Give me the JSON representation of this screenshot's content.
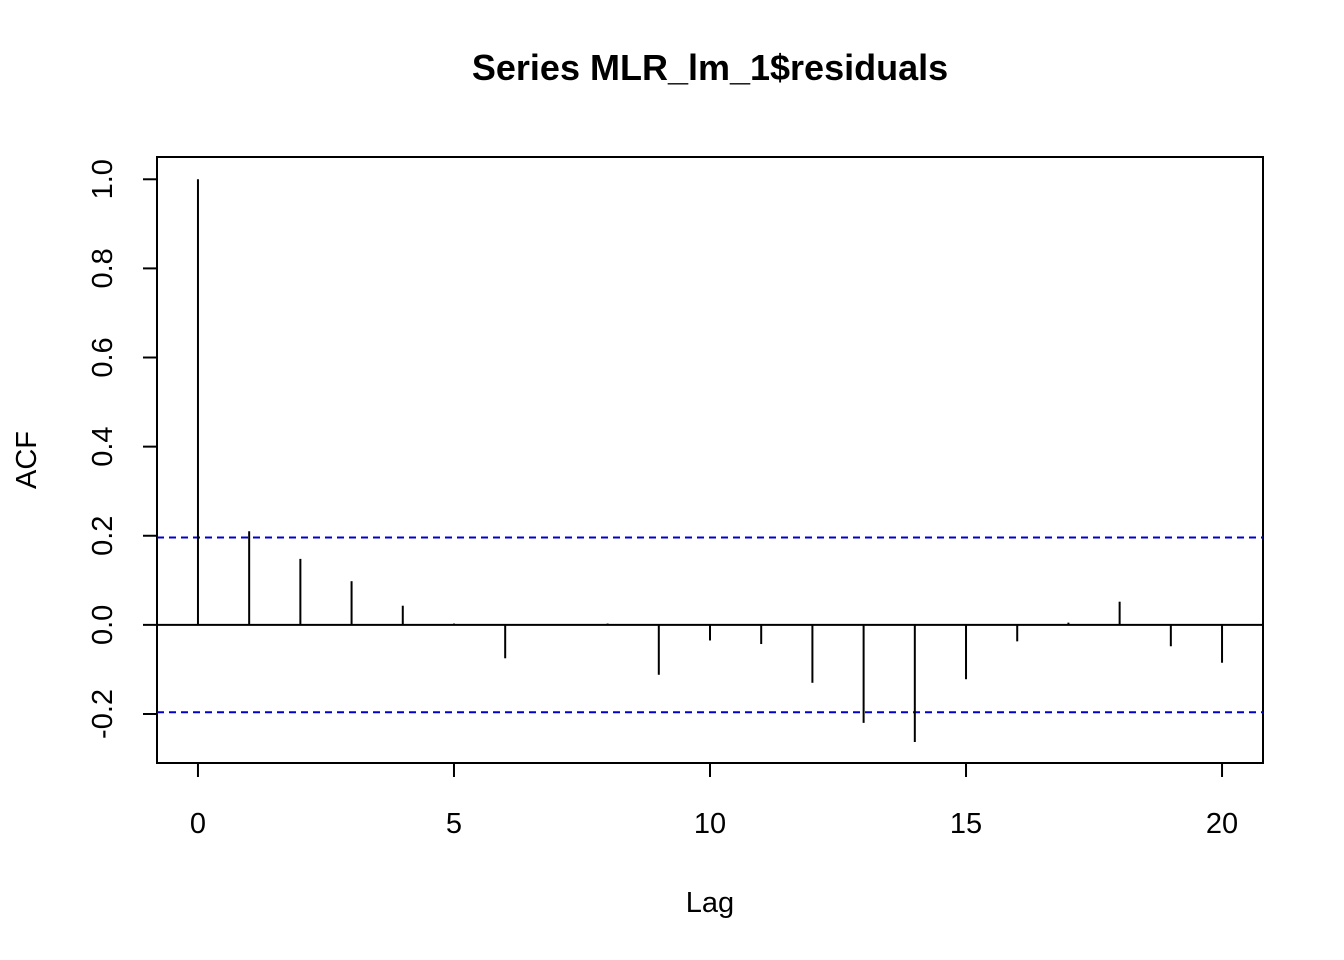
{
  "chart_data": {
    "type": "bar",
    "title": "Series  MLR_lm_1$residuals",
    "xlabel": "Lag",
    "ylabel": "ACF",
    "x": [
      0,
      1,
      2,
      3,
      4,
      5,
      6,
      7,
      8,
      9,
      10,
      11,
      12,
      13,
      14,
      15,
      16,
      17,
      18,
      19,
      20
    ],
    "values": [
      1.0,
      0.21,
      0.148,
      0.098,
      0.043,
      0.003,
      -0.075,
      0.001,
      0.003,
      -0.112,
      -0.035,
      -0.043,
      -0.13,
      -0.22,
      -0.263,
      -0.122,
      -0.037,
      0.005,
      0.052,
      -0.048,
      -0.085
    ],
    "xlim": [
      -0.8,
      20.8
    ],
    "ylim": [
      -0.31,
      1.05
    ],
    "xticks": [
      0,
      5,
      10,
      15,
      20
    ],
    "yticks": [
      -0.2,
      0.0,
      0.2,
      0.4,
      0.6,
      0.8,
      1.0
    ],
    "xtick_labels": [
      "0",
      "5",
      "10",
      "15",
      "20"
    ],
    "ytick_labels": [
      "-0.2",
      "0.0",
      "0.2",
      "0.4",
      "0.6",
      "0.8",
      "1.0"
    ],
    "confidence_bounds": [
      0.196,
      -0.196
    ],
    "confidence_color": "#0000cc",
    "bar_color": "#000000",
    "grid": false,
    "legend": "none"
  }
}
